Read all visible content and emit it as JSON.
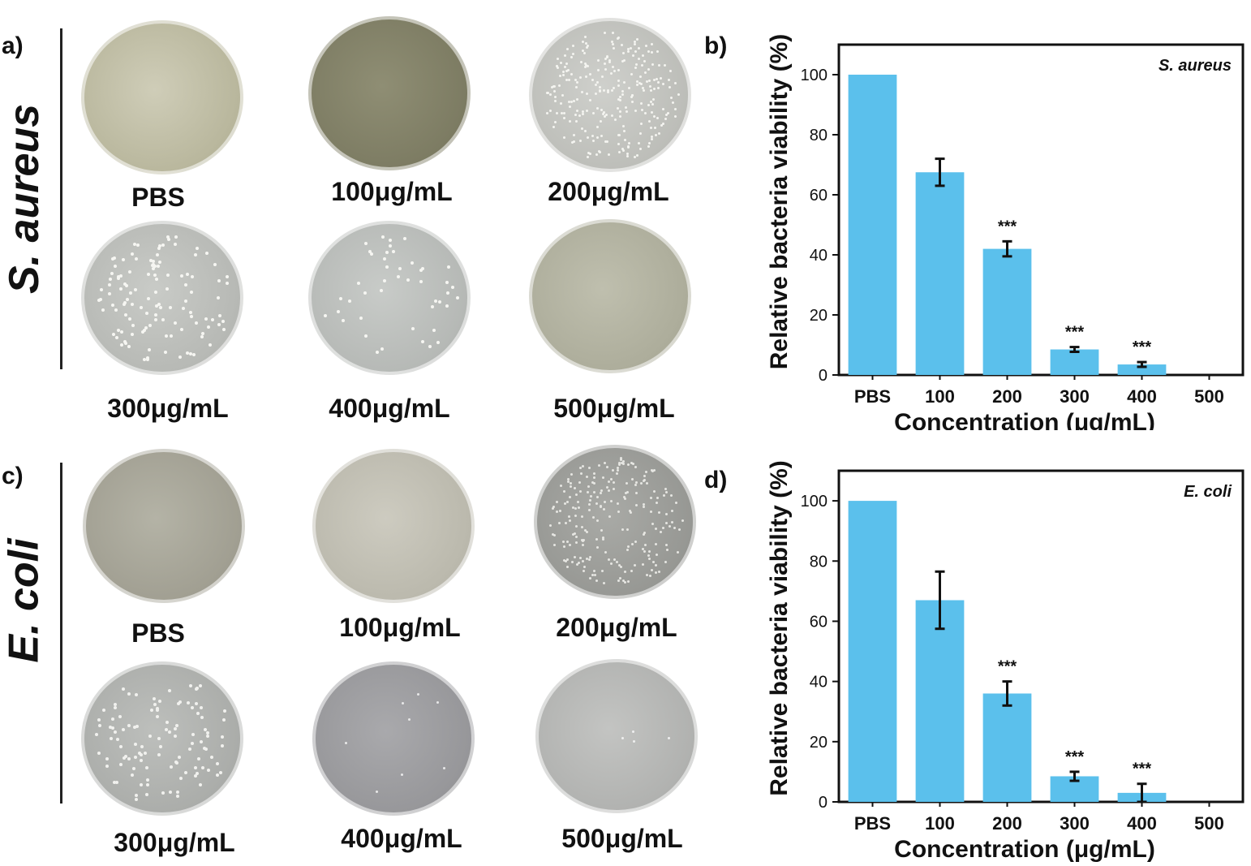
{
  "panels": {
    "a": "a)",
    "b": "b)",
    "c": "c)",
    "d": "d)"
  },
  "species": {
    "top": "S. aureus",
    "bottom": "E. coli"
  },
  "plates": {
    "top": [
      {
        "label": "PBS"
      },
      {
        "label": "100μg/mL"
      },
      {
        "label": "200μg/mL"
      },
      {
        "label": "300μg/mL"
      },
      {
        "label": "400μg/mL"
      },
      {
        "label": "500μg/mL"
      }
    ],
    "bottom": [
      {
        "label": "PBS"
      },
      {
        "label": "100μg/mL"
      },
      {
        "label": "200μg/mL"
      },
      {
        "label": "300μg/mL"
      },
      {
        "label": "400μg/mL"
      },
      {
        "label": "500μg/mL"
      }
    ]
  },
  "colors": {
    "bar": "#5bc0ec",
    "axis": "#111111"
  },
  "chart_data": [
    {
      "type": "bar",
      "title": "S. aureus",
      "xlabel": "Concentration (μg/mL)",
      "ylabel": "Relative bacteria viability (%)",
      "categories": [
        "PBS",
        "100",
        "200",
        "300",
        "400",
        "500"
      ],
      "values": [
        100,
        67.5,
        42,
        8.5,
        3.5,
        0
      ],
      "errors": [
        0,
        4.5,
        2.5,
        0.8,
        0.8,
        0
      ],
      "annotations": [
        "",
        "",
        "***",
        "***",
        "***",
        ""
      ],
      "ylim": [
        0,
        110
      ],
      "yticks": [
        0,
        20,
        40,
        60,
        80,
        100
      ],
      "legend_position": "top-right"
    },
    {
      "type": "bar",
      "title": "E. coli",
      "xlabel": "Concentration (μg/mL)",
      "ylabel": "Relative bacteria viability (%)",
      "categories": [
        "PBS",
        "100",
        "200",
        "300",
        "400",
        "500"
      ],
      "values": [
        100,
        67,
        36,
        8.5,
        3,
        0
      ],
      "errors": [
        0,
        9.5,
        4,
        1.5,
        3,
        0
      ],
      "annotations": [
        "",
        "",
        "***",
        "***",
        "***",
        ""
      ],
      "ylim": [
        0,
        110
      ],
      "yticks": [
        0,
        20,
        40,
        60,
        80,
        100
      ],
      "legend_position": "top-right"
    }
  ]
}
